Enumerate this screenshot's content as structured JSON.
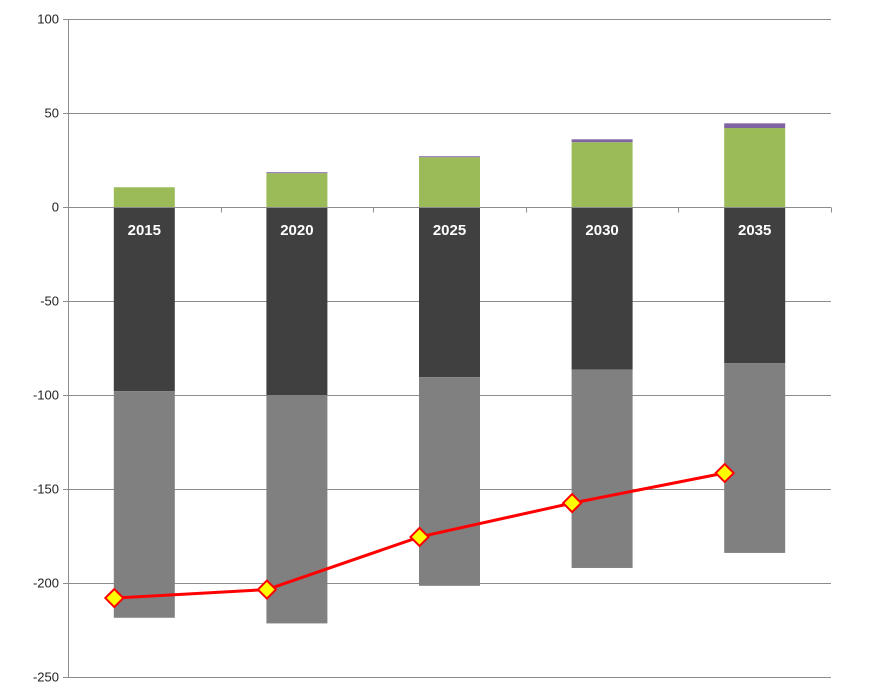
{
  "chart_data": {
    "type": "bar",
    "stacked": true,
    "categories": [
      "2015",
      "2020",
      "2025",
      "2030",
      "2035"
    ],
    "ylim": [
      -250,
      100
    ],
    "yticks": [
      100,
      50,
      0,
      -50,
      -100,
      -150,
      -200,
      -250
    ],
    "grid": true,
    "legend": "none",
    "positive_stack": [
      {
        "color": "#9bbb59",
        "values": [
          10.5,
          18,
          26.5,
          34.5,
          42
        ]
      },
      {
        "color": "#8064a2",
        "values": [
          0,
          0.5,
          0.5,
          1.5,
          2.5
        ]
      }
    ],
    "negative_stack": [
      {
        "color": "#404040",
        "values": [
          -98,
          -100,
          -90.5,
          -86.5,
          -83
        ]
      },
      {
        "color": "#808080",
        "values": [
          -120.5,
          -121.5,
          -111,
          -105.5,
          -101
        ]
      }
    ],
    "line": {
      "color": "#ff0000",
      "marker_fill": "#ffff00",
      "marker_stroke": "#ff0000",
      "values": [
        -208,
        -203.5,
        -175.5,
        -157.5,
        -141.5
      ]
    }
  }
}
